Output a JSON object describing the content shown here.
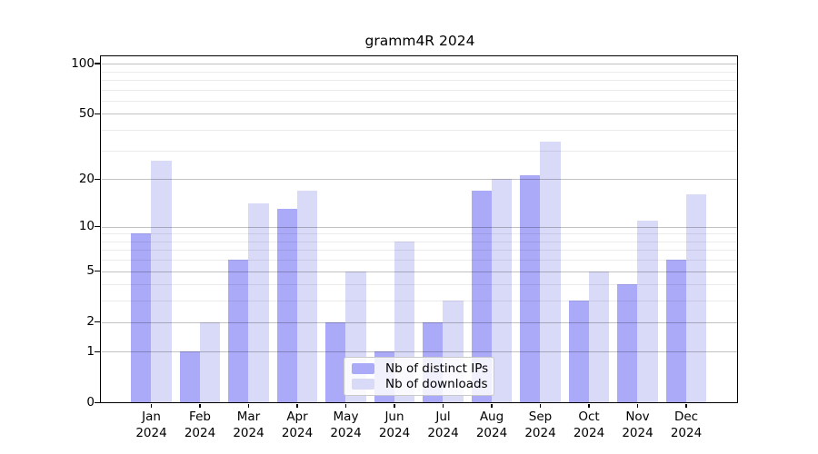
{
  "chart_data": {
    "type": "bar",
    "title": "gramm4R 2024",
    "categories": [
      "Jan",
      "Feb",
      "Mar",
      "Apr",
      "May",
      "Jun",
      "Jul",
      "Aug",
      "Sep",
      "Oct",
      "Nov",
      "Dec"
    ],
    "year_label": "2024",
    "series": [
      {
        "name": "Nb of distinct IPs",
        "color": "#aaaaf8",
        "values": [
          9,
          1,
          6,
          13,
          2,
          1,
          2,
          17,
          21,
          3,
          4,
          6
        ]
      },
      {
        "name": "Nb of downloads",
        "color": "#d9d9f8",
        "values": [
          26,
          2,
          14,
          17,
          5,
          8,
          3,
          20,
          34,
          5,
          11,
          16
        ]
      }
    ],
    "y_axis": {
      "ticks": [
        0,
        1,
        2,
        5,
        10,
        20,
        50,
        100
      ],
      "minor_gridlines": [
        3,
        4,
        6,
        7,
        8,
        9,
        30,
        40,
        60,
        70,
        80,
        90
      ],
      "scale": "log1p",
      "range": [
        0,
        100
      ]
    },
    "legend": {
      "position": "inside-bottom-center"
    },
    "grid": true
  }
}
